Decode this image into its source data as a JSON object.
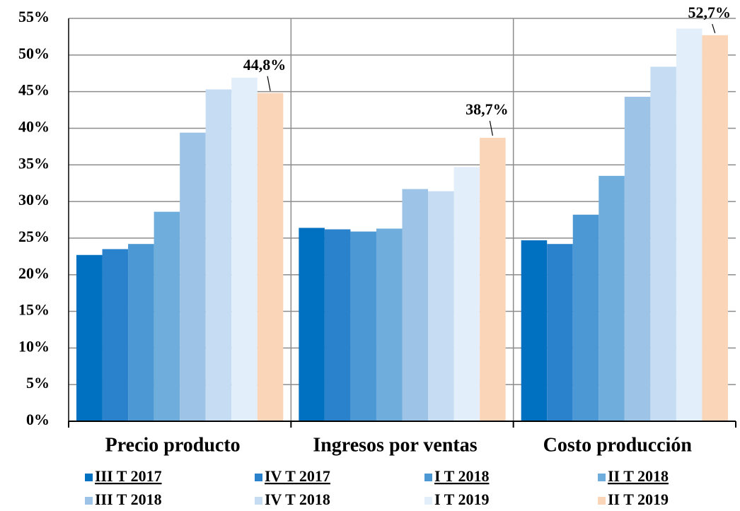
{
  "chart_data": {
    "type": "bar",
    "categories": [
      "Precio producto",
      "Ingresos por ventas",
      "Costo producción"
    ],
    "series": [
      {
        "name": "III T 2017",
        "color": "#0070c0",
        "values": [
          22.7,
          26.4,
          24.7
        ]
      },
      {
        "name": "IV T 2017",
        "color": "#2a82cc",
        "values": [
          23.5,
          26.2,
          24.2
        ]
      },
      {
        "name": "I T 2018",
        "color": "#4b98d4",
        "values": [
          24.2,
          25.9,
          28.2
        ]
      },
      {
        "name": "II T 2018",
        "color": "#6faedc",
        "values": [
          28.6,
          26.3,
          33.5
        ]
      },
      {
        "name": "III T 2018",
        "color": "#9dc3e6",
        "values": [
          39.4,
          31.7,
          44.3
        ]
      },
      {
        "name": "IV T 2018",
        "color": "#c6dcf2",
        "values": [
          45.3,
          31.4,
          48.4
        ]
      },
      {
        "name": "I T 2019",
        "color": "#e2eef9",
        "values": [
          46.9,
          34.7,
          53.6
        ]
      },
      {
        "name": "II T 2019",
        "color": "#fbd5b7",
        "values": [
          44.8,
          38.7,
          52.7
        ],
        "value_labels": [
          "44,8%",
          "38,7%",
          "52,7%"
        ]
      }
    ],
    "ylim": [
      0,
      55
    ],
    "yticks": [
      {
        "value": 0,
        "label": "0%"
      },
      {
        "value": 5,
        "label": "5%"
      },
      {
        "value": 10,
        "label": "10%"
      },
      {
        "value": 15,
        "label": "15%"
      },
      {
        "value": 20,
        "label": "20%"
      },
      {
        "value": 25,
        "label": "25%"
      },
      {
        "value": 30,
        "label": "30%"
      },
      {
        "value": 35,
        "label": "35%"
      },
      {
        "value": 40,
        "label": "40%"
      },
      {
        "value": 45,
        "label": "45%"
      },
      {
        "value": 50,
        "label": "50%"
      },
      {
        "value": 55,
        "label": "55%"
      }
    ],
    "grid": true
  }
}
